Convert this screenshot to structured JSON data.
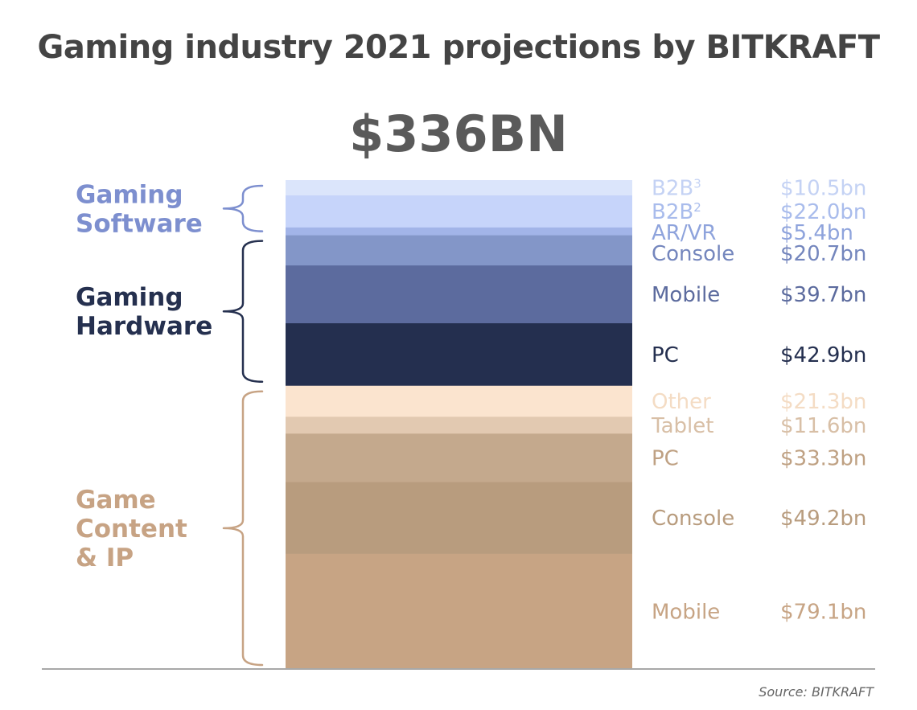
{
  "chart_data": {
    "type": "bar",
    "title": "Gaming industry 2021 projections by BITKRAFT",
    "total_label": "$336BN",
    "source": "Source: BITKRAFT",
    "stacking": "single stacked column, top to bottom",
    "groups": [
      {
        "name_lines": [
          "Gaming",
          "Software"
        ],
        "color": "#7d8fcf",
        "segments": [
          {
            "name": "B2B",
            "sup": "3",
            "value": 10.5,
            "value_label": "$10.5bn",
            "color": "#dbe5fb",
            "text_color": "#c4d2f4"
          },
          {
            "name": "B2B",
            "sup": "2",
            "value": 22.0,
            "value_label": "$22.0bn",
            "color": "#c6d4fa",
            "text_color": "#a9bcec"
          },
          {
            "name": "AR/VR",
            "value": 5.4,
            "value_label": "$5.4bn",
            "color": "#a2b4e8",
            "text_color": "#8ea3dc"
          }
        ]
      },
      {
        "name_lines": [
          "Gaming",
          "Hardware"
        ],
        "color": "#25304f",
        "segments": [
          {
            "name": "Console",
            "value": 20.7,
            "value_label": "$20.7bn",
            "color": "#8396c8",
            "text_color": "#7486bd"
          },
          {
            "name": "Mobile",
            "value": 39.7,
            "value_label": "$39.7bn",
            "color": "#5c6b9e",
            "text_color": "#5c6b9e"
          },
          {
            "name": "PC",
            "value": 42.9,
            "value_label": "$42.9bn",
            "color": "#242f4f",
            "text_color": "#242f4f"
          }
        ]
      },
      {
        "name_lines": [
          "Game",
          "Content",
          "& IP"
        ],
        "color": "#c7a384",
        "segments": [
          {
            "name": "Other",
            "value": 21.3,
            "value_label": "$21.3bn",
            "color": "#fbe4cf",
            "text_color": "#f4dcc4"
          },
          {
            "name": "Tablet",
            "value": 11.6,
            "value_label": "$11.6bn",
            "color": "#e2c9b1",
            "text_color": "#d8bfa6"
          },
          {
            "name": "PC",
            "value": 33.3,
            "value_label": "$33.3bn",
            "color": "#c4a98d",
            "text_color": "#bfa183"
          },
          {
            "name": "Console",
            "value": 49.2,
            "value_label": "$49.2bn",
            "color": "#b89c7e",
            "text_color": "#b89c7e"
          },
          {
            "name": "Mobile",
            "value": 79.1,
            "value_label": "$79.1bn",
            "color": "#c7a484",
            "text_color": "#c7a484"
          }
        ]
      }
    ]
  }
}
